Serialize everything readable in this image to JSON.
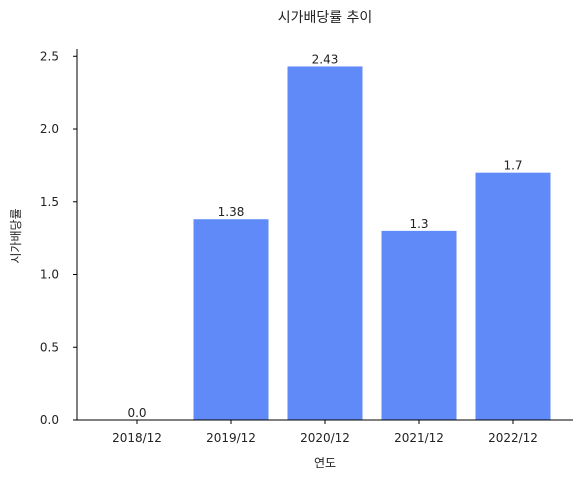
{
  "chart_data": {
    "type": "bar",
    "title": "시가배당률 추이",
    "xlabel": "연도",
    "ylabel": "시가배당률",
    "categories": [
      "2018/12",
      "2019/12",
      "2020/12",
      "2021/12",
      "2022/12"
    ],
    "values": [
      0.0,
      1.38,
      2.43,
      1.3,
      1.7
    ],
    "data_labels": [
      "0.0",
      "1.38",
      "2.43",
      "1.3",
      "1.7"
    ],
    "ylim": [
      0,
      2.55
    ],
    "yticks": [
      0.0,
      0.5,
      1.0,
      1.5,
      2.0,
      2.5
    ],
    "ytick_labels": [
      "0.0",
      "0.5",
      "1.0",
      "1.5",
      "2.0",
      "2.5"
    ],
    "bar_color": "#5f8af7",
    "grid": false,
    "legend": "none"
  }
}
